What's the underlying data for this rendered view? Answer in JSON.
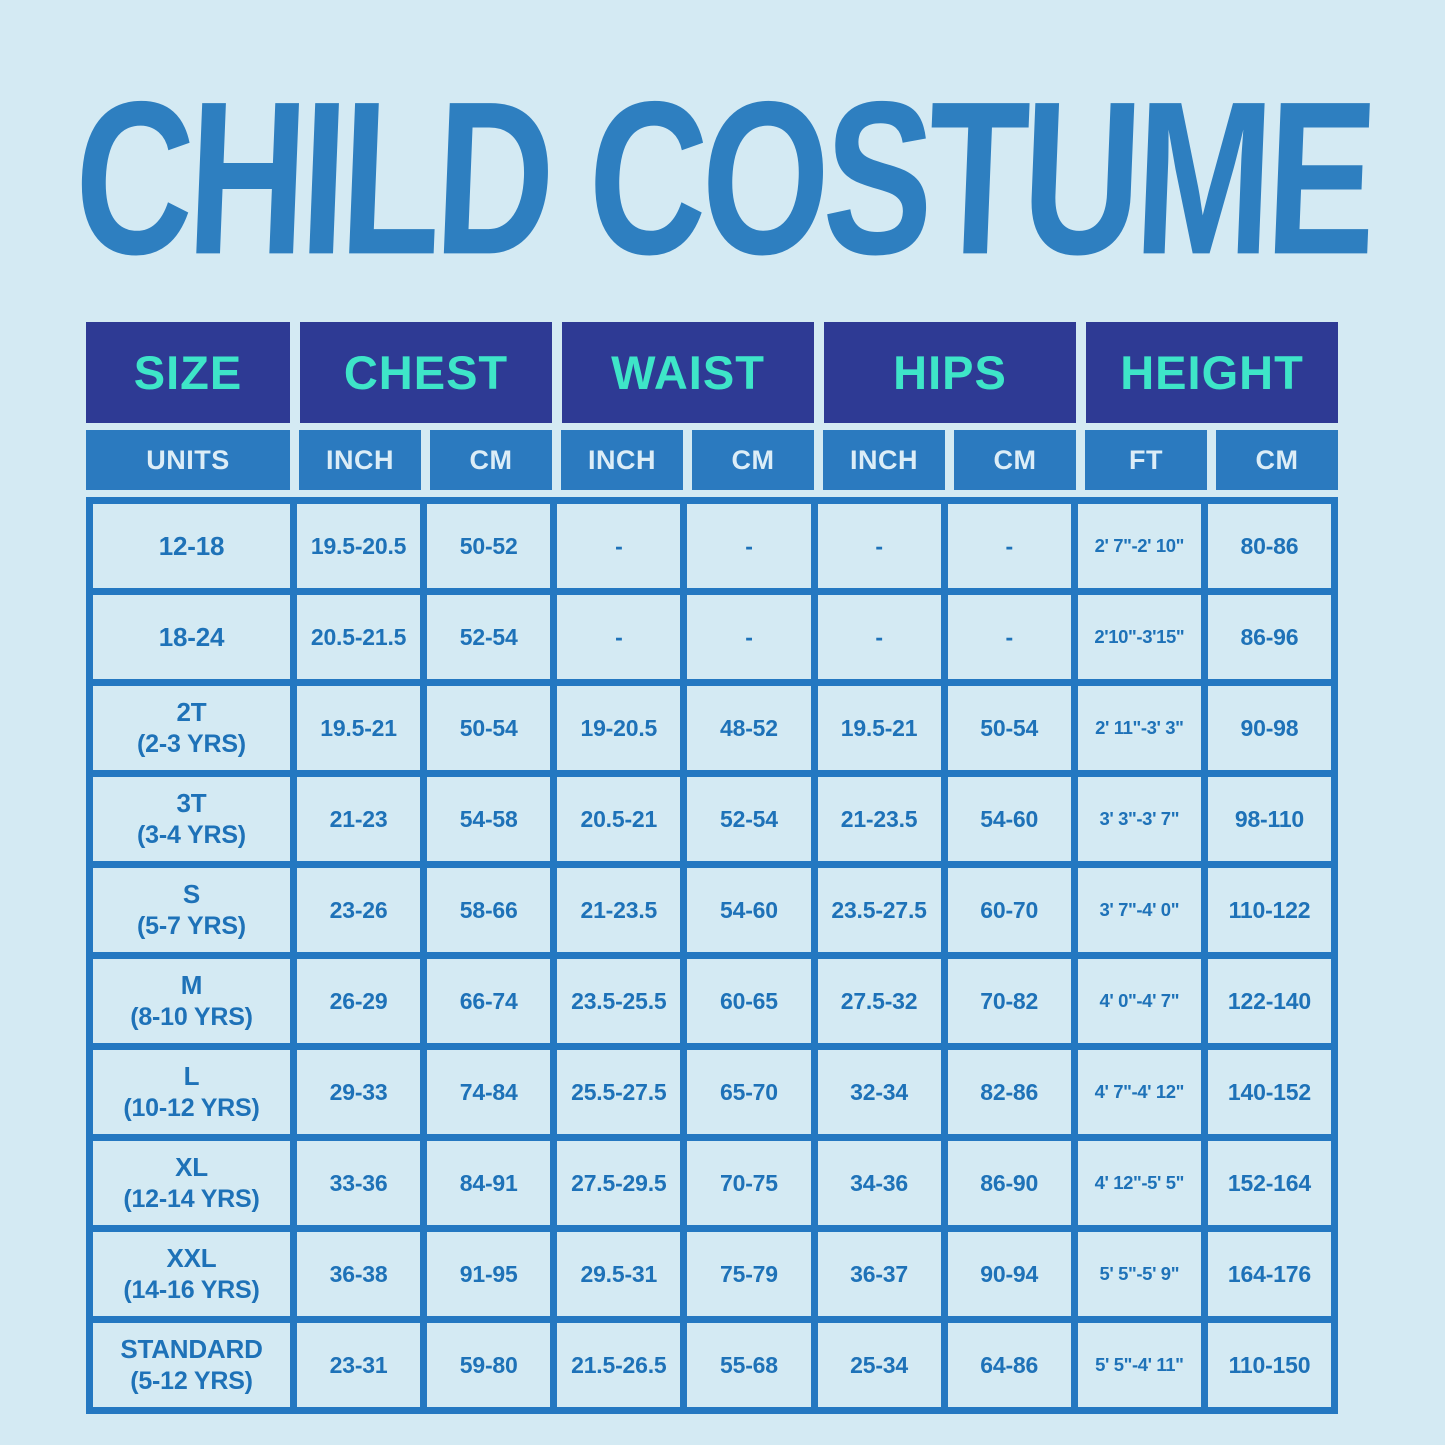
{
  "title": "CHILD COSTUME",
  "colors": {
    "page_background": "#d4eaf3",
    "title_blue": "#2e7fc0",
    "header_navy": "#2e3a94",
    "header_teal": "#3ee5c8",
    "units_blue": "#2b7abf",
    "units_text": "#dcedf7",
    "grid_line_blue": "#2478c1",
    "cell_background": "#d4eaf3",
    "data_text_blue": "#1e72b8"
  },
  "chart_data": {
    "type": "table",
    "title": "CHILD COSTUME",
    "column_groups": [
      {
        "label": "SIZE",
        "units": [
          "UNITS"
        ]
      },
      {
        "label": "CHEST",
        "units": [
          "INCH",
          "CM"
        ]
      },
      {
        "label": "WAIST",
        "units": [
          "INCH",
          "CM"
        ]
      },
      {
        "label": "HIPS",
        "units": [
          "INCH",
          "CM"
        ]
      },
      {
        "label": "HEIGHT",
        "units": [
          "FT",
          "CM"
        ]
      }
    ],
    "rows": [
      {
        "size": "12-18",
        "age": "",
        "values": [
          "19.5-20.5",
          "50-52",
          "-",
          "-",
          "-",
          "-",
          "2' 7\"-2' 10\"",
          "80-86"
        ]
      },
      {
        "size": "18-24",
        "age": "",
        "values": [
          "20.5-21.5",
          "52-54",
          "-",
          "-",
          "-",
          "-",
          "2'10\"-3'15\"",
          "86-96"
        ]
      },
      {
        "size": "2T",
        "age": "(2-3 YRS)",
        "values": [
          "19.5-21",
          "50-54",
          "19-20.5",
          "48-52",
          "19.5-21",
          "50-54",
          "2' 11\"-3' 3\"",
          "90-98"
        ]
      },
      {
        "size": "3T",
        "age": "(3-4 YRS)",
        "values": [
          "21-23",
          "54-58",
          "20.5-21",
          "52-54",
          "21-23.5",
          "54-60",
          "3' 3\"-3' 7\"",
          "98-110"
        ]
      },
      {
        "size": "S",
        "age": "(5-7 YRS)",
        "values": [
          "23-26",
          "58-66",
          "21-23.5",
          "54-60",
          "23.5-27.5",
          "60-70",
          "3' 7\"-4' 0\"",
          "110-122"
        ]
      },
      {
        "size": "M",
        "age": "(8-10 YRS)",
        "values": [
          "26-29",
          "66-74",
          "23.5-25.5",
          "60-65",
          "27.5-32",
          "70-82",
          "4' 0\"-4' 7\"",
          "122-140"
        ]
      },
      {
        "size": "L",
        "age": "(10-12 YRS)",
        "values": [
          "29-33",
          "74-84",
          "25.5-27.5",
          "65-70",
          "32-34",
          "82-86",
          "4' 7\"-4' 12\"",
          "140-152"
        ]
      },
      {
        "size": "XL",
        "age": "(12-14 YRS)",
        "values": [
          "33-36",
          "84-91",
          "27.5-29.5",
          "70-75",
          "34-36",
          "86-90",
          "4' 12\"-5' 5\"",
          "152-164"
        ]
      },
      {
        "size": "XXL",
        "age": "(14-16 YRS)",
        "values": [
          "36-38",
          "91-95",
          "29.5-31",
          "75-79",
          "36-37",
          "90-94",
          "5' 5\"-5' 9\"",
          "164-176"
        ]
      },
      {
        "size": "STANDARD",
        "age": "(5-12 YRS)",
        "values": [
          "23-31",
          "59-80",
          "21.5-26.5",
          "55-68",
          "25-34",
          "64-86",
          "5' 5\"-4' 11\"",
          "110-150"
        ]
      }
    ]
  }
}
